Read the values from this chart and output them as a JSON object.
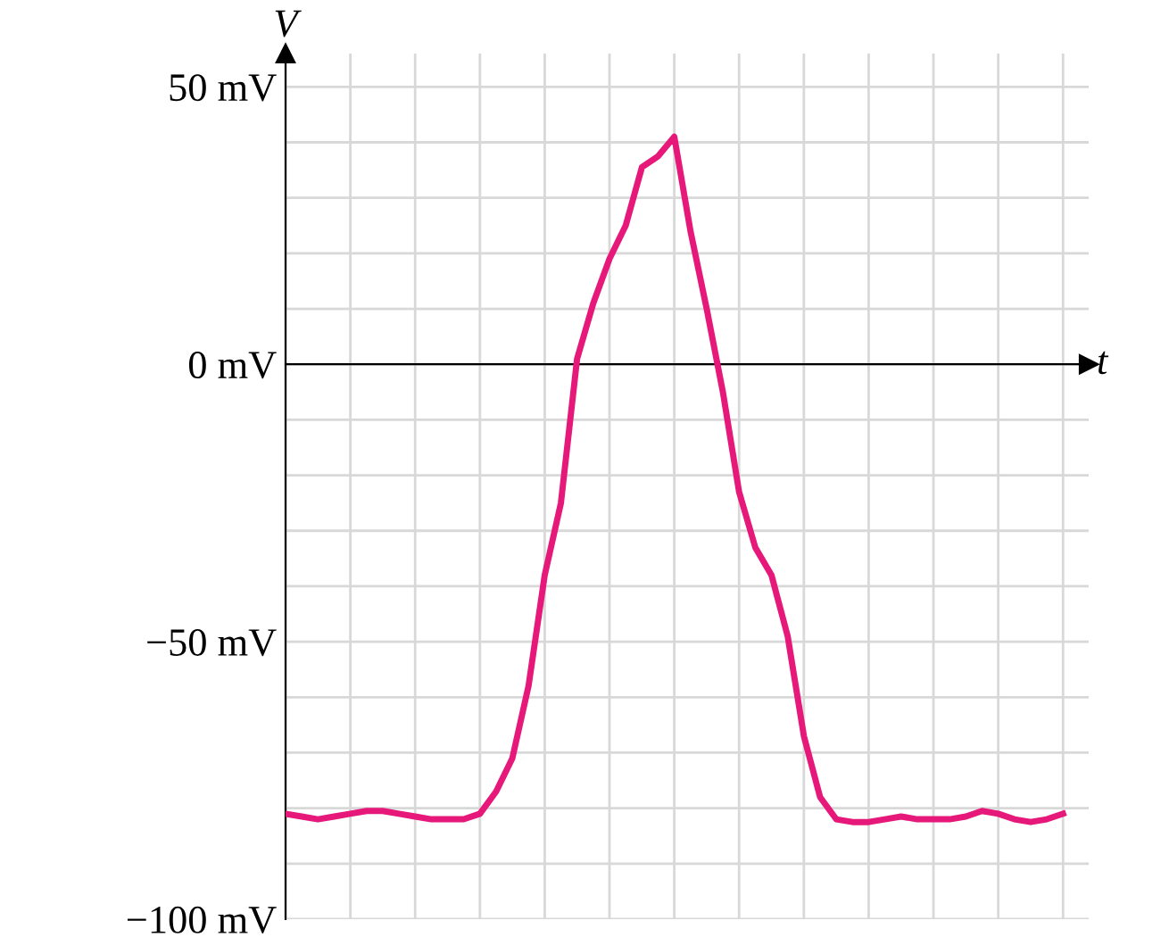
{
  "chart_data": {
    "type": "line",
    "xlabel": "t",
    "ylabel": "V",
    "categories": [
      null,
      null,
      null,
      null,
      null,
      null,
      null,
      null,
      null,
      null,
      null,
      null,
      null,
      null,
      null,
      null,
      null,
      null,
      null,
      null,
      null,
      null,
      null,
      null,
      null,
      null,
      null,
      null,
      null,
      null,
      null,
      null,
      null,
      null,
      null,
      null,
      null,
      null,
      null,
      null,
      null,
      null,
      null,
      null,
      null,
      null,
      null,
      null,
      null
    ],
    "series": [
      {
        "color": "#e6187a",
        "values": [
          -81,
          -81.5,
          -82,
          -81.5,
          -81,
          -80.5,
          -80.5,
          -81,
          -81.5,
          -82,
          -82,
          -82,
          -81,
          -77,
          -71,
          -58,
          -38,
          -25,
          1,
          11,
          19,
          25,
          35.5,
          37.5,
          41,
          24,
          10,
          -5,
          -23,
          -33,
          -38,
          -49,
          -67,
          -78,
          -82,
          -82.5,
          -82.5,
          -82,
          -81.5,
          -82,
          -82,
          -82,
          -81.5,
          -80.5,
          -81,
          -82,
          -82.5,
          -82,
          -81
        ]
      }
    ],
    "ylim": [
      -100,
      56
    ],
    "yticks": [
      {
        "value": -100,
        "label": "−100 mV"
      },
      {
        "value": -90,
        "label": null
      },
      {
        "value": -80,
        "label": null
      },
      {
        "value": -70,
        "label": null
      },
      {
        "value": -60,
        "label": null
      },
      {
        "value": -50,
        "label": "−50 mV"
      },
      {
        "value": -40,
        "label": null
      },
      {
        "value": -30,
        "label": null
      },
      {
        "value": -20,
        "label": null
      },
      {
        "value": -10,
        "label": null
      },
      {
        "value": 0,
        "label": "0 mV"
      },
      {
        "value": 10,
        "label": null
      },
      {
        "value": 20,
        "label": null
      },
      {
        "value": 30,
        "label": null
      },
      {
        "value": 40,
        "label": null
      },
      {
        "value": 50,
        "label": "50 mV"
      }
    ],
    "grid": true,
    "tick_labels": "y",
    "marker": "none",
    "line_style": "solid"
  }
}
